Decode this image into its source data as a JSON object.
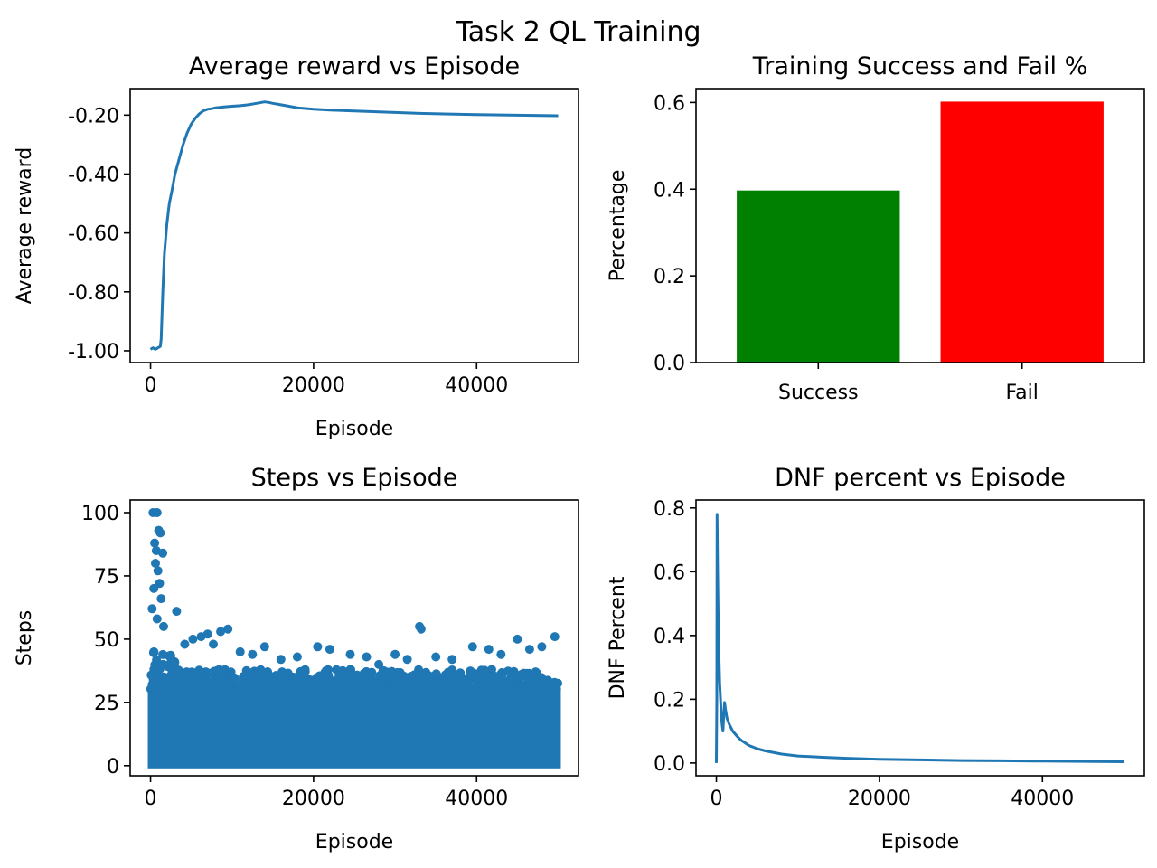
{
  "figure": {
    "title": "Task 2 QL Training"
  },
  "colors": {
    "line": "#1f77b4",
    "success_bar": "#008000",
    "fail_bar": "#ff0000"
  },
  "chart_data": [
    {
      "id": "avg-reward",
      "type": "line",
      "title": "Average reward vs Episode",
      "xlabel": "Episode",
      "ylabel": "Average reward",
      "xlim": [
        -2500,
        52500
      ],
      "ylim": [
        -1.04,
        -0.11
      ],
      "xticks": [
        0,
        20000,
        40000
      ],
      "xtick_labels": [
        "0",
        "20000",
        "40000"
      ],
      "yticks": [
        -1.0,
        -0.8,
        -0.6,
        -0.4,
        -0.2
      ],
      "ytick_labels": [
        "-1.00",
        "-0.80",
        "-0.60",
        "-0.40",
        "-0.20"
      ],
      "grid": false,
      "series": [
        {
          "x": [
            0,
            300,
            600,
            900,
            1200,
            1300,
            1500,
            1700,
            2000,
            2300,
            2600,
            3000,
            3500,
            4000,
            4500,
            5000,
            5500,
            6000,
            6500,
            7000,
            7500,
            8000,
            9000,
            10000,
            11000,
            12000,
            13000,
            14000,
            14500,
            15000,
            16000,
            17000,
            18000,
            20000,
            22000,
            25000,
            28000,
            30000,
            33000,
            36000,
            40000,
            44000,
            47000,
            50000
          ],
          "y": [
            -0.995,
            -0.99,
            -0.995,
            -0.99,
            -0.985,
            -0.96,
            -0.8,
            -0.67,
            -0.57,
            -0.5,
            -0.46,
            -0.4,
            -0.35,
            -0.3,
            -0.26,
            -0.23,
            -0.21,
            -0.195,
            -0.185,
            -0.18,
            -0.178,
            -0.175,
            -0.172,
            -0.17,
            -0.168,
            -0.165,
            -0.16,
            -0.155,
            -0.157,
            -0.16,
            -0.165,
            -0.17,
            -0.175,
            -0.18,
            -0.183,
            -0.186,
            -0.189,
            -0.191,
            -0.194,
            -0.196,
            -0.198,
            -0.2,
            -0.201,
            -0.202
          ]
        }
      ]
    },
    {
      "id": "success-fail",
      "type": "bar",
      "title": "Training Success and Fail %",
      "xlabel": "",
      "ylabel": "Percentage",
      "categories": [
        "Success",
        "Fail"
      ],
      "values": [
        0.397,
        0.602
      ],
      "ylim": [
        0,
        0.6321
      ],
      "yticks": [
        0.0,
        0.2,
        0.4,
        0.6
      ],
      "ytick_labels": [
        "0.0",
        "0.2",
        "0.4",
        "0.6"
      ],
      "grid": false
    },
    {
      "id": "steps",
      "type": "scatter",
      "title": "Steps vs Episode",
      "xlabel": "Episode",
      "ylabel": "Steps",
      "xlim": [
        -2500,
        52500
      ],
      "ylim": [
        -4,
        105
      ],
      "xticks": [
        0,
        20000,
        40000
      ],
      "xtick_labels": [
        "0",
        "20000",
        "40000"
      ],
      "yticks": [
        0,
        25,
        50,
        75,
        100
      ],
      "ytick_labels": [
        "0",
        "25",
        "50",
        "75",
        "100"
      ],
      "grid": false,
      "dense_band": {
        "x_range": [
          0,
          50000
        ],
        "y_range": [
          0,
          30
        ]
      },
      "series": [
        {
          "x": [
            300,
            800,
            1000,
            1200,
            500,
            700,
            1500,
            600,
            900,
            1100,
            400,
            1300,
            200,
            800,
            1600,
            3200,
            4200,
            5200,
            6200,
            7000,
            7700,
            8600,
            9500,
            11000,
            12500,
            14000,
            16000,
            18000,
            20500,
            22000,
            24500,
            26500,
            28000,
            30000,
            31500,
            33000,
            33200,
            35000,
            37000,
            39500,
            41500,
            43000,
            45000,
            46500,
            48000,
            49600
          ],
          "y": [
            100,
            100,
            93,
            92,
            88,
            85,
            84,
            80,
            77,
            72,
            70,
            66,
            62,
            58,
            55,
            61,
            48,
            50,
            51,
            52,
            48,
            53,
            54,
            45,
            44,
            47,
            42,
            43,
            47,
            46,
            44,
            43,
            40,
            44,
            42,
            55,
            54,
            43,
            42,
            47,
            46,
            44,
            50,
            46,
            47,
            51
          ]
        }
      ]
    },
    {
      "id": "dnf",
      "type": "line",
      "title": "DNF percent vs Episode",
      "xlabel": "Episode",
      "ylabel": "DNF Percent",
      "xlim": [
        -2500,
        52500
      ],
      "ylim": [
        -0.04,
        0.825
      ],
      "xticks": [
        0,
        20000,
        40000
      ],
      "xtick_labels": [
        "0",
        "20000",
        "40000"
      ],
      "yticks": [
        0.0,
        0.2,
        0.4,
        0.6,
        0.8
      ],
      "ytick_labels": [
        "0.0",
        "0.2",
        "0.4",
        "0.6",
        "0.8"
      ],
      "grid": false,
      "series": [
        {
          "x": [
            0,
            50,
            80,
            150,
            250,
            400,
            600,
            700,
            800,
            900,
            1000,
            1100,
            1300,
            1600,
            2000,
            2500,
            3000,
            4000,
            5000,
            6000,
            8000,
            10000,
            13000,
            16000,
            20000,
            25000,
            30000,
            35000,
            40000,
            45000,
            50000
          ],
          "y": [
            0.0,
            0.2,
            0.78,
            0.6,
            0.4,
            0.25,
            0.15,
            0.12,
            0.1,
            0.15,
            0.19,
            0.17,
            0.14,
            0.12,
            0.1,
            0.085,
            0.072,
            0.055,
            0.045,
            0.038,
            0.028,
            0.022,
            0.018,
            0.015,
            0.012,
            0.01,
            0.008,
            0.007,
            0.006,
            0.005,
            0.004
          ]
        }
      ]
    }
  ]
}
